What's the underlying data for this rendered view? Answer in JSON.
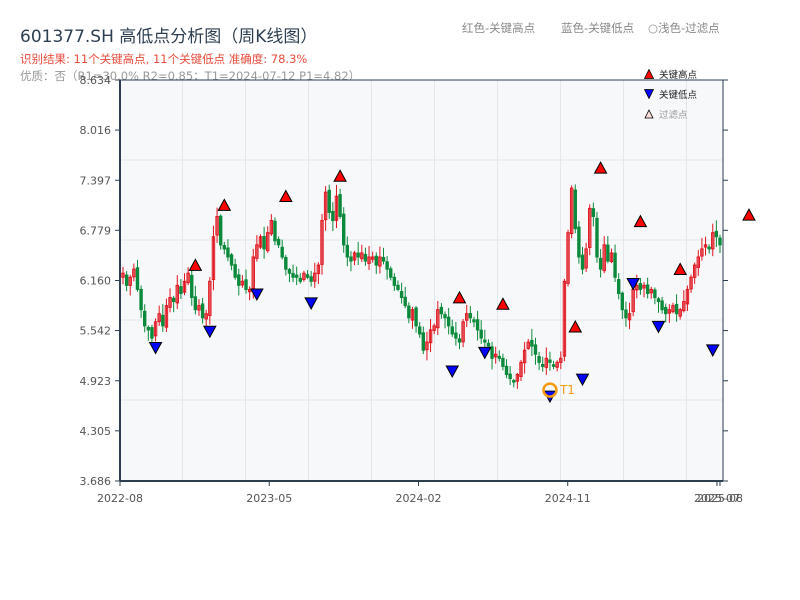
{
  "header": {
    "title": "601377.SH 高低点分析图（周K线图）",
    "result_line": "识别结果: 11个关键高点, 11个关键低点   准确度: 78.3%",
    "quality_line": "优质：否（R1=30.0%  R2=0.85；T1=2024-07-12 P1=4.82）",
    "hint_red": "红色-关键高点",
    "hint_blue": "蓝色-关键低点",
    "hint_light": "○浅色-过滤点"
  },
  "legend": {
    "items": [
      {
        "label": "关键高点",
        "color": "#ff0000",
        "shape": "triangle-up"
      },
      {
        "label": "关键低点",
        "color": "#0000ff",
        "shape": "triangle-down"
      },
      {
        "label": "过滤点",
        "color": "#ffcccc",
        "shape": "triangle-up-light"
      }
    ]
  },
  "colors": {
    "up": "#e0141e",
    "down": "#0a8a3a",
    "high_marker": "#ff0000",
    "low_marker": "#0000ff",
    "t1_ring": "#f39c12",
    "axis": "#2c3e50",
    "grid": "#e3e6ea",
    "plot_bg": "#f7f8fa"
  },
  "chart_data": {
    "type": "candlestick",
    "title": "601377.SH 高低点分析图（周K线图）",
    "xlabel": "",
    "ylabel": "",
    "ylim": [
      3.686,
      8.634
    ],
    "yticks": [
      "3.686",
      "4.305",
      "4.923",
      "5.542",
      "6.160",
      "6.779",
      "7.397",
      "8.016",
      "8.634"
    ],
    "xticks": [
      "2022-08",
      "2023-05",
      "2024-02",
      "2024-11",
      "2025-07",
      "2025-08"
    ],
    "xtick_pos": [
      0,
      0.2475,
      0.495,
      0.7425,
      0.99,
      0.995
    ],
    "grid": true,
    "closes": [
      6.25,
      6.1,
      6.2,
      6.3,
      6.05,
      5.8,
      5.6,
      5.55,
      5.45,
      5.65,
      5.75,
      5.6,
      5.85,
      5.95,
      5.9,
      6.1,
      6.0,
      6.15,
      6.25,
      5.95,
      5.8,
      5.85,
      5.7,
      5.75,
      6.15,
      6.7,
      6.95,
      6.6,
      6.55,
      6.45,
      6.35,
      6.2,
      6.1,
      6.15,
      6.05,
      6.05,
      6.45,
      6.6,
      6.7,
      6.55,
      6.75,
      6.9,
      6.65,
      6.6,
      6.45,
      6.3,
      6.25,
      6.2,
      6.2,
      6.15,
      6.25,
      6.2,
      6.15,
      6.25,
      6.35,
      6.9,
      7.25,
      7.0,
      6.9,
      7.2,
      6.95,
      6.6,
      6.45,
      6.4,
      6.5,
      6.45,
      6.5,
      6.4,
      6.45,
      6.45,
      6.35,
      6.45,
      6.4,
      6.3,
      6.2,
      6.1,
      6.05,
      5.95,
      5.85,
      5.7,
      5.8,
      5.6,
      5.5,
      5.3,
      5.4,
      5.55,
      5.6,
      5.8,
      5.75,
      5.7,
      5.6,
      5.5,
      5.45,
      5.4,
      5.65,
      5.75,
      5.7,
      5.65,
      5.55,
      5.45,
      5.4,
      5.35,
      5.2,
      5.25,
      5.2,
      5.1,
      5.0,
      4.95,
      4.92,
      5.0,
      5.15,
      5.3,
      5.4,
      5.35,
      5.25,
      5.15,
      5.1,
      5.2,
      5.15,
      5.1,
      5.15,
      5.2,
      6.15,
      6.75,
      7.3,
      6.8,
      6.45,
      6.3,
      6.55,
      7.05,
      6.95,
      6.45,
      6.3,
      6.6,
      6.4,
      6.5,
      6.2,
      6.0,
      5.8,
      5.7,
      5.75,
      6.05,
      6.1,
      6.05,
      6.1,
      6.0,
      6.05,
      5.95,
      5.9,
      5.8,
      5.75,
      5.8,
      5.85,
      5.75,
      5.8,
      5.9,
      6.05,
      6.2,
      6.35,
      6.45,
      6.55,
      6.6,
      6.55,
      6.75,
      6.7,
      6.6
    ],
    "key_highs": [
      {
        "i": 20,
        "price": 6.26
      },
      {
        "i": 28,
        "price": 7.0
      },
      {
        "i": 45,
        "price": 7.11
      },
      {
        "i": 60,
        "price": 7.36
      },
      {
        "i": 93,
        "price": 5.86
      },
      {
        "i": 105,
        "price": 5.78
      },
      {
        "i": 125,
        "price": 5.5
      },
      {
        "i": 132,
        "price": 7.46
      },
      {
        "i": 143,
        "price": 6.8
      },
      {
        "i": 154,
        "price": 6.21
      },
      {
        "i": 173,
        "price": 6.88
      }
    ],
    "key_lows": [
      {
        "i": 9,
        "price": 5.42
      },
      {
        "i": 24,
        "price": 5.62
      },
      {
        "i": 37,
        "price": 6.08
      },
      {
        "i": 52,
        "price": 5.97
      },
      {
        "i": 91,
        "price": 5.13
      },
      {
        "i": 100,
        "price": 5.36
      },
      {
        "i": 118,
        "price": 4.82
      },
      {
        "i": 127,
        "price": 5.03
      },
      {
        "i": 141,
        "price": 6.21
      },
      {
        "i": 148,
        "price": 5.68
      },
      {
        "i": 163,
        "price": 5.39
      }
    ],
    "t1": {
      "label": "T1",
      "date": "2024-07-12",
      "price": 4.82,
      "i": 118
    }
  }
}
